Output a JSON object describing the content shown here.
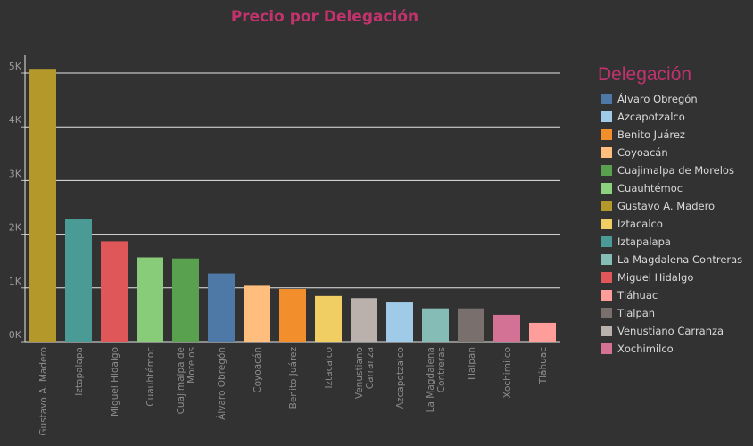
{
  "title": "Precio por Delegación",
  "chart_data": {
    "type": "bar",
    "title": "Precio por Delegación",
    "xlabel": "",
    "ylabel": "",
    "ylim": [
      0,
      5300
    ],
    "yticks": [
      0,
      1000,
      2000,
      3000,
      4000,
      5000
    ],
    "ytick_labels": [
      "0K",
      "1K",
      "2K",
      "3K",
      "4K",
      "5K"
    ],
    "grid": true,
    "categories": [
      {
        "label": [
          "Gustavo A. Madero"
        ],
        "value": 5080,
        "color": "#b5982a"
      },
      {
        "label": [
          "Iztapalapa"
        ],
        "value": 2290,
        "color": "#4a9b96"
      },
      {
        "label": [
          "Miguel Hidalgo"
        ],
        "value": 1870,
        "color": "#e05759"
      },
      {
        "label": [
          "Cuauhtémoc"
        ],
        "value": 1570,
        "color": "#88cc7a"
      },
      {
        "label": [
          "Cuajimalpa de",
          "Morelos"
        ],
        "value": 1550,
        "color": "#59a14f"
      },
      {
        "label": [
          "Álvaro Obregón"
        ],
        "value": 1270,
        "color": "#4e79a7"
      },
      {
        "label": [
          "Coyoacán"
        ],
        "value": 1040,
        "color": "#ffbe7d"
      },
      {
        "label": [
          "Benito Juárez"
        ],
        "value": 980,
        "color": "#f28e2b"
      },
      {
        "label": [
          "Iztacalco"
        ],
        "value": 850,
        "color": "#f1ce63"
      },
      {
        "label": [
          "Venustiano",
          "Carranza"
        ],
        "value": 810,
        "color": "#bab0ac"
      },
      {
        "label": [
          "Azcapotzalco"
        ],
        "value": 730,
        "color": "#a0cbe8"
      },
      {
        "label": [
          "La Magdalena",
          "Contreras"
        ],
        "value": 620,
        "color": "#86bcb6"
      },
      {
        "label": [
          "Tlalpan"
        ],
        "value": 620,
        "color": "#79706e"
      },
      {
        "label": [
          "Xochimilco"
        ],
        "value": 500,
        "color": "#d37295"
      },
      {
        "label": [
          "Tláhuac"
        ],
        "value": 350,
        "color": "#ff9d9a"
      }
    ]
  },
  "legend": {
    "title": "Delegación",
    "items": [
      {
        "label": "Álvaro Obregón",
        "color": "#4e79a7"
      },
      {
        "label": "Azcapotzalco",
        "color": "#a0cbe8"
      },
      {
        "label": "Benito Juárez",
        "color": "#f28e2b"
      },
      {
        "label": "Coyoacán",
        "color": "#ffbe7d"
      },
      {
        "label": "Cuajimalpa de Morelos",
        "color": "#59a14f"
      },
      {
        "label": "Cuauhtémoc",
        "color": "#8cd17d"
      },
      {
        "label": "Gustavo A. Madero",
        "color": "#b5982a"
      },
      {
        "label": "Iztacalco",
        "color": "#f1ce63"
      },
      {
        "label": "Iztapalapa",
        "color": "#4a9b96"
      },
      {
        "label": "La Magdalena Contreras",
        "color": "#86bcb6"
      },
      {
        "label": "Miguel Hidalgo",
        "color": "#e15759"
      },
      {
        "label": "Tláhuac",
        "color": "#ff9d9a"
      },
      {
        "label": "Tlalpan",
        "color": "#79706e"
      },
      {
        "label": "Venustiano Carranza",
        "color": "#bab0ac"
      },
      {
        "label": "Xochimilco",
        "color": "#d37295"
      }
    ]
  }
}
